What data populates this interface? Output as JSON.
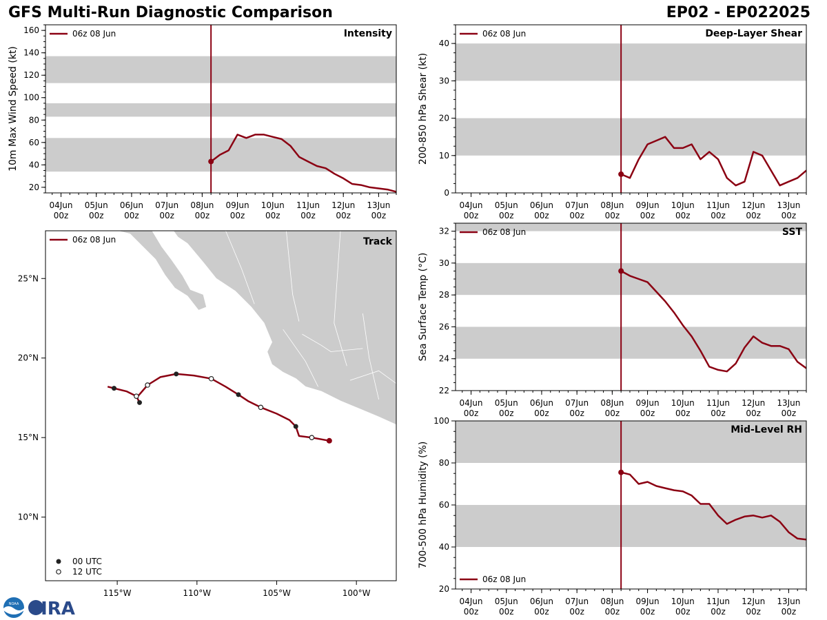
{
  "header": {
    "title": "GFS Multi-Run Diagnostic Comparison",
    "storm_id": "EP02 - EP022025"
  },
  "logo": {
    "text": "CIRA",
    "agency": "NOAA"
  },
  "colors": {
    "run": "#8b0012",
    "band": "#cccccc",
    "land": "#cccccc",
    "frame": "#000000"
  },
  "time_axis": {
    "ticks": [
      "04Jun",
      "05Jun",
      "06Jun",
      "07Jun",
      "08Jun",
      "09Jun",
      "10Jun",
      "11Jun",
      "12Jun",
      "13Jun"
    ],
    "hour_label": "00z",
    "range_days": [
      3.56,
      13.5
    ],
    "init_day": 8.25
  },
  "chart_data": [
    {
      "id": "intensity",
      "type": "line",
      "title": "Intensity",
      "ylabel": "10m Max Wind Speed (kt)",
      "ylim": [
        15,
        165
      ],
      "yticks": [
        20,
        40,
        60,
        80,
        100,
        120,
        140,
        160
      ],
      "bands": [
        [
          34,
          64
        ],
        [
          83,
          95
        ],
        [
          113,
          137
        ]
      ],
      "legend": "06z 08 Jun",
      "legend_pos": "top-left",
      "series": [
        {
          "name": "06z 08 Jun",
          "x": [
            8.25,
            8.5,
            8.75,
            9.0,
            9.25,
            9.5,
            9.75,
            10.0,
            10.25,
            10.5,
            10.75,
            11.0,
            11.25,
            11.5,
            11.75,
            12.0,
            12.25,
            12.5,
            12.75,
            13.0,
            13.25,
            13.5
          ],
          "y": [
            43,
            49,
            53,
            67,
            64,
            67,
            67,
            65,
            63,
            57,
            47,
            43,
            39,
            37,
            32,
            28,
            23,
            22,
            20,
            19,
            18,
            16
          ]
        }
      ]
    },
    {
      "id": "shear",
      "type": "line",
      "title": "Deep-Layer Shear",
      "ylabel": "200-850 hPa Shear (kt)",
      "ylim": [
        0,
        45
      ],
      "yticks": [
        0,
        10,
        20,
        30,
        40
      ],
      "bands": [
        [
          10,
          20
        ],
        [
          30,
          40
        ]
      ],
      "legend": "06z 08 Jun",
      "legend_pos": "top-left",
      "series": [
        {
          "name": "06z 08 Jun",
          "x": [
            8.25,
            8.5,
            8.75,
            9.0,
            9.25,
            9.5,
            9.75,
            10.0,
            10.25,
            10.5,
            10.75,
            11.0,
            11.25,
            11.5,
            11.75,
            12.0,
            12.25,
            12.5,
            12.75,
            13.0,
            13.25,
            13.5
          ],
          "y": [
            5,
            4,
            9,
            13,
            14,
            15,
            12,
            12,
            13,
            9,
            11,
            9,
            4,
            2,
            3,
            11,
            10,
            6,
            2,
            3,
            4,
            6
          ]
        }
      ]
    },
    {
      "id": "sst",
      "type": "line",
      "title": "SST",
      "ylabel": "Sea Surface Temp (°C)",
      "ylim": [
        22,
        32.5
      ],
      "yticks": [
        22,
        24,
        26,
        28,
        30,
        32
      ],
      "bands": [
        [
          24,
          26
        ],
        [
          28,
          30
        ],
        [
          32,
          33
        ]
      ],
      "legend": "06z 08 Jun",
      "legend_pos": "top-left",
      "series": [
        {
          "name": "06z 08 Jun",
          "x": [
            8.25,
            8.5,
            8.75,
            9.0,
            9.25,
            9.5,
            9.75,
            10.0,
            10.25,
            10.5,
            10.75,
            11.0,
            11.25,
            11.5,
            11.75,
            12.0,
            12.25,
            12.5,
            12.75,
            13.0,
            13.25,
            13.5
          ],
          "y": [
            29.5,
            29.2,
            29.0,
            28.8,
            28.2,
            27.6,
            26.9,
            26.1,
            25.4,
            24.5,
            23.5,
            23.3,
            23.2,
            23.7,
            24.7,
            25.4,
            25.0,
            24.8,
            24.8,
            24.6,
            23.8,
            23.4
          ]
        }
      ]
    },
    {
      "id": "rh",
      "type": "line",
      "title": "Mid-Level RH",
      "ylabel": "700-500 hPa Humidity (%)",
      "ylim": [
        20,
        100
      ],
      "yticks": [
        20,
        40,
        60,
        80,
        100
      ],
      "bands": [
        [
          40,
          60
        ],
        [
          80,
          100
        ]
      ],
      "legend": "06z 08 Jun",
      "legend_pos": "bottom-left",
      "series": [
        {
          "name": "06z 08 Jun",
          "x": [
            8.25,
            8.5,
            8.75,
            9.0,
            9.25,
            9.5,
            9.75,
            10.0,
            10.25,
            10.5,
            10.75,
            11.0,
            11.25,
            11.5,
            11.75,
            12.0,
            12.25,
            12.5,
            12.75,
            13.0,
            13.25,
            13.5
          ],
          "y": [
            75.5,
            74.5,
            70,
            71,
            69,
            68,
            67,
            66.5,
            64.5,
            60.5,
            60.5,
            55,
            51,
            53,
            54.5,
            55,
            54,
            55,
            52,
            47,
            44,
            43.5
          ]
        }
      ]
    },
    {
      "id": "track",
      "type": "scatter",
      "title": "Track",
      "xlim": [
        -119.5,
        -97.5
      ],
      "ylim": [
        6,
        28
      ],
      "xticks": [
        -115,
        -110,
        -105,
        -100
      ],
      "xtick_labels": [
        "115°W",
        "110°W",
        "105°W",
        "100°W"
      ],
      "yticks": [
        10,
        15,
        20,
        25
      ],
      "ytick_labels": [
        "10°N",
        "15°N",
        "20°N",
        "25°N"
      ],
      "legend": "06z 08 Jun",
      "marker_legend": [
        "00 UTC",
        "12 UTC"
      ],
      "line": {
        "lon": [
          -101.7,
          -102.8,
          -103.6,
          -103.8,
          -104.2,
          -105.0,
          -106.0,
          -106.8,
          -107.4,
          -108.2,
          -109.1,
          -110.2,
          -111.3,
          -112.3,
          -113.1,
          -113.7,
          -113.8,
          -114.4,
          -115.2,
          -115.6
        ],
        "lat": [
          14.8,
          15.0,
          15.1,
          15.7,
          16.1,
          16.5,
          16.9,
          17.3,
          17.7,
          18.2,
          18.7,
          18.9,
          19.0,
          18.8,
          18.3,
          17.6,
          17.6,
          17.9,
          18.1,
          18.2
        ]
      },
      "start": {
        "lon": -101.7,
        "lat": 14.8
      },
      "points_00utc": [
        [
          -103.8,
          15.7
        ],
        [
          -107.4,
          17.7
        ],
        [
          -111.3,
          19.0
        ],
        [
          -113.6,
          17.2
        ],
        [
          -115.2,
          18.1
        ]
      ],
      "points_12utc": [
        [
          -102.8,
          15.0
        ],
        [
          -106.0,
          16.9
        ],
        [
          -109.1,
          18.7
        ],
        [
          -113.1,
          18.3
        ],
        [
          -113.8,
          17.6
        ]
      ],
      "branch": [
        [
          -113.8,
          17.6
        ],
        [
          -113.6,
          17.2
        ]
      ]
    }
  ]
}
